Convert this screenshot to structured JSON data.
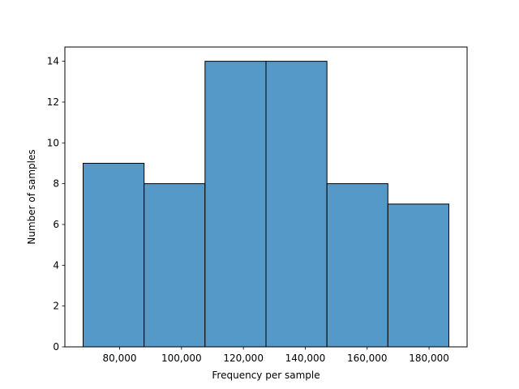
{
  "chart_data": {
    "type": "bar",
    "subtype": "histogram",
    "title": "",
    "xlabel": "Frequency per sample",
    "ylabel": "Number of samples",
    "bins": [
      {
        "start": 68200,
        "end": 87900,
        "count": 9
      },
      {
        "start": 87900,
        "end": 107600,
        "count": 8
      },
      {
        "start": 107600,
        "end": 127300,
        "count": 14
      },
      {
        "start": 127300,
        "end": 147000,
        "count": 14
      },
      {
        "start": 147000,
        "end": 166700,
        "count": 8
      },
      {
        "start": 166700,
        "end": 186400,
        "count": 7
      }
    ],
    "xlim": [
      62300,
      192300
    ],
    "ylim": [
      0,
      14.7
    ],
    "xticks": [
      80000,
      100000,
      120000,
      140000,
      160000,
      180000
    ],
    "xtick_labels": [
      "80,000",
      "100,000",
      "120,000",
      "140,000",
      "160,000",
      "180,000"
    ],
    "yticks": [
      0,
      2,
      4,
      6,
      8,
      10,
      12,
      14
    ],
    "ytick_labels": [
      "0",
      "2",
      "4",
      "6",
      "8",
      "10",
      "12",
      "14"
    ],
    "bar_color": "#5499c7",
    "edge_color": "#000000",
    "grid": false,
    "legend": "none"
  }
}
